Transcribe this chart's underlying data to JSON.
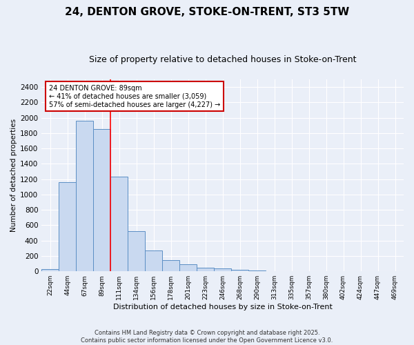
{
  "title": "24, DENTON GROVE, STOKE-ON-TRENT, ST3 5TW",
  "subtitle": "Size of property relative to detached houses in Stoke-on-Trent",
  "xlabel": "Distribution of detached houses by size in Stoke-on-Trent",
  "ylabel": "Number of detached properties",
  "bin_labels": [
    "22sqm",
    "44sqm",
    "67sqm",
    "89sqm",
    "111sqm",
    "134sqm",
    "156sqm",
    "178sqm",
    "201sqm",
    "223sqm",
    "246sqm",
    "268sqm",
    "290sqm",
    "313sqm",
    "335sqm",
    "357sqm",
    "380sqm",
    "402sqm",
    "424sqm",
    "447sqm",
    "469sqm"
  ],
  "bar_values": [
    25,
    1160,
    1960,
    1855,
    1230,
    520,
    275,
    150,
    90,
    45,
    40,
    20,
    15,
    5,
    5,
    3,
    2,
    2,
    1,
    1,
    1
  ],
  "bar_color": "#c9d9f0",
  "bar_edge_color": "#5b8ec4",
  "red_line_bin": 3,
  "annotation_title": "24 DENTON GROVE: 89sqm",
  "annotation_line1": "← 41% of detached houses are smaller (3,059)",
  "annotation_line2": "57% of semi-detached houses are larger (4,227) →",
  "annotation_box_color": "#ffffff",
  "annotation_box_edge": "#cc0000",
  "footer_line1": "Contains HM Land Registry data © Crown copyright and database right 2025.",
  "footer_line2": "Contains public sector information licensed under the Open Government Licence v3.0.",
  "ylim": [
    0,
    2500
  ],
  "yticks": [
    0,
    200,
    400,
    600,
    800,
    1000,
    1200,
    1400,
    1600,
    1800,
    2000,
    2200,
    2400
  ],
  "background_color": "#eaeff8",
  "plot_bg_color": "#eaeff8",
  "grid_color": "#ffffff",
  "title_fontsize": 11,
  "subtitle_fontsize": 9
}
